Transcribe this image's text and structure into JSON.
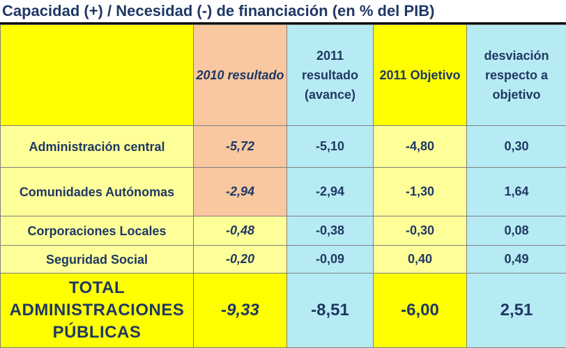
{
  "title": "Capacidad (+) / Necesidad (-) de financiación (en % del PIB)",
  "header": {
    "col_2010": "2010 resultado",
    "col_2011_result": "2011 resultado (avance)",
    "col_2011_objective": "2011 Objetivo",
    "col_deviation": "desviación respecto a objetivo"
  },
  "rows": [
    {
      "label": "Administración central",
      "v2010": "-5,72",
      "v2011_result": "-5,10",
      "v2011_objective": "-4,80",
      "deviation": "0,30"
    },
    {
      "label": "Comunidades Autónomas",
      "v2010": "-2,94",
      "v2011_result": "-2,94",
      "v2011_objective": "-1,30",
      "deviation": "1,64"
    },
    {
      "label": "Corporaciones Locales",
      "v2010": "-0,48",
      "v2011_result": "-0,38",
      "v2011_objective": "-0,30",
      "deviation": "0,08"
    },
    {
      "label": "Seguridad Social",
      "v2010": "-0,20",
      "v2011_result": "-0,09",
      "v2011_objective": "0,40",
      "deviation": "0,49"
    }
  ],
  "total": {
    "label": "TOTAL ADMINISTRACIONES PÚBLICAS",
    "v2010": "-9,33",
    "v2011_result": "-8,51",
    "v2011_objective": "-6,00",
    "deviation": "2,51"
  },
  "colors": {
    "text": "#1f3864",
    "label_header_bg": "#ffff00",
    "label_bg": "#ffff99",
    "col_2010_bg": "#f9c8a0",
    "cyan_bg": "#b7ebf3",
    "objective_bg": "#ffff99",
    "yellow_bg": "#ffff00"
  }
}
